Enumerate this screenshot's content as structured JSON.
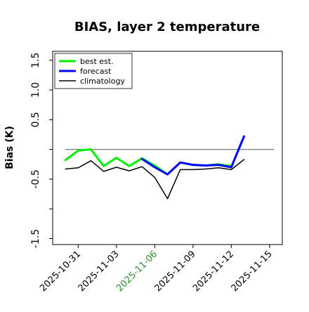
{
  "chart_data": {
    "type": "line",
    "title": "BIAS, layer 2 temperature",
    "xlabel": "",
    "ylabel": "Bias (K)",
    "ylim": [
      -1.6,
      1.65
    ],
    "xlim": [
      "2025-10-29",
      "2025-11-16"
    ],
    "grid": false,
    "legend_position": "top-left",
    "x_ticks": [
      {
        "label": "2025-10-31",
        "color": "#000000"
      },
      {
        "label": "2025-11-03",
        "color": "#000000"
      },
      {
        "label": "2025-11-06",
        "color": "#2e8b2e"
      },
      {
        "label": "2025-11-09",
        "color": "#000000"
      },
      {
        "label": "2025-11-12",
        "color": "#000000"
      },
      {
        "label": "2025-11-15",
        "color": "#000000"
      }
    ],
    "y_ticks": [
      {
        "value": -1.5,
        "label": "-1.5"
      },
      {
        "value": -1.0,
        "label": ""
      },
      {
        "value": -0.5,
        "label": "-0.5"
      },
      {
        "value": 0.0,
        "label": ""
      },
      {
        "value": 0.5,
        "label": "0.5"
      },
      {
        "value": 1.0,
        "label": "1.0"
      },
      {
        "value": 1.5,
        "label": "1.5"
      }
    ],
    "reference_line": 0,
    "series": [
      {
        "name": "best est.",
        "color": "#00ee00",
        "width": 3,
        "x": [
          "2025-10-30",
          "2025-10-31",
          "2025-11-01",
          "2025-11-02",
          "2025-11-03",
          "2025-11-04",
          "2025-11-05",
          "2025-11-06",
          "2025-11-07",
          "2025-11-08",
          "2025-11-09",
          "2025-11-10",
          "2025-11-11",
          "2025-11-12"
        ],
        "values": [
          -0.18,
          -0.02,
          0.0,
          -0.28,
          -0.14,
          -0.28,
          -0.15,
          -0.27,
          -0.42,
          -0.22,
          -0.26,
          -0.27,
          -0.25,
          -0.28
        ]
      },
      {
        "name": "forecast",
        "color": "#0000ff",
        "width": 3,
        "x": [
          "2025-11-05",
          "2025-11-06",
          "2025-11-07",
          "2025-11-08",
          "2025-11-09",
          "2025-11-10",
          "2025-11-11",
          "2025-11-12",
          "2025-11-13"
        ],
        "values": [
          -0.16,
          -0.3,
          -0.42,
          -0.22,
          -0.26,
          -0.27,
          -0.26,
          -0.3,
          0.22
        ]
      },
      {
        "name": "climatology",
        "color": "#000000",
        "width": 1.5,
        "x": [
          "2025-10-30",
          "2025-10-31",
          "2025-11-01",
          "2025-11-02",
          "2025-11-03",
          "2025-11-04",
          "2025-11-05",
          "2025-11-06",
          "2025-11-07",
          "2025-11-08",
          "2025-11-09",
          "2025-11-10",
          "2025-11-11",
          "2025-11-12",
          "2025-11-13"
        ],
        "values": [
          -0.33,
          -0.31,
          -0.19,
          -0.37,
          -0.3,
          -0.36,
          -0.29,
          -0.47,
          -0.83,
          -0.34,
          -0.34,
          -0.33,
          -0.31,
          -0.34,
          -0.17
        ]
      }
    ]
  }
}
